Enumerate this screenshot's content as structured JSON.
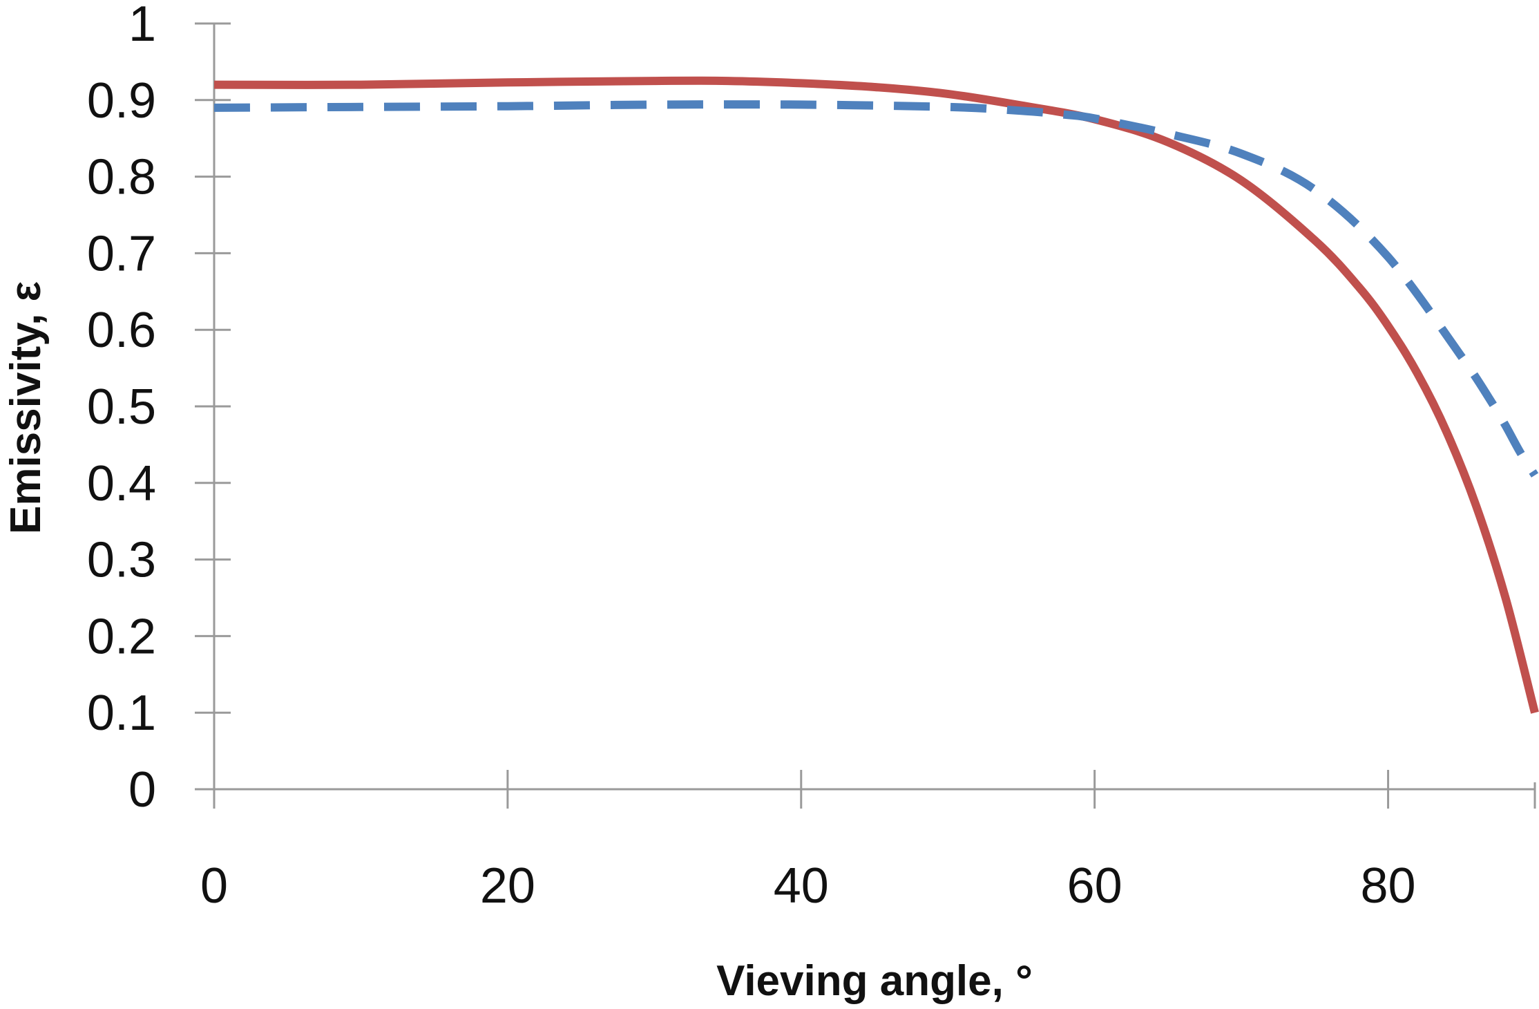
{
  "chart_data": {
    "type": "line",
    "title": "",
    "xlabel": "Vieving angle, °",
    "ylabel": "Emissivity, ε",
    "xlim": [
      0,
      90
    ],
    "ylim": [
      0,
      1
    ],
    "x_ticks": [
      0,
      20,
      40,
      60,
      80
    ],
    "y_ticks": [
      0,
      0.1,
      0.2,
      0.3,
      0.4,
      0.5,
      0.6,
      0.7,
      0.8,
      0.9,
      1
    ],
    "grid": false,
    "legend": "none",
    "series": [
      {
        "color": "#c0504d",
        "line_style": "solid",
        "x": [
          0,
          10,
          20,
          30,
          35,
          40,
          45,
          50,
          55,
          60,
          65,
          70,
          75,
          78,
          80,
          82,
          84,
          86,
          88,
          90
        ],
        "y": [
          0.92,
          0.92,
          0.923,
          0.925,
          0.925,
          0.922,
          0.917,
          0.908,
          0.893,
          0.875,
          0.845,
          0.795,
          0.717,
          0.656,
          0.605,
          0.543,
          0.466,
          0.37,
          0.25,
          0.1
        ]
      },
      {
        "color": "#4f81bd",
        "line_style": "dashed",
        "x": [
          0,
          10,
          20,
          30,
          40,
          50,
          55,
          58,
          60,
          65,
          70,
          75,
          80,
          85,
          87,
          88,
          89,
          90
        ],
        "y": [
          0.89,
          0.891,
          0.892,
          0.894,
          0.894,
          0.891,
          0.886,
          0.881,
          0.876,
          0.856,
          0.83,
          0.783,
          0.695,
          0.565,
          0.507,
          0.475,
          0.44,
          0.41
        ]
      }
    ]
  }
}
